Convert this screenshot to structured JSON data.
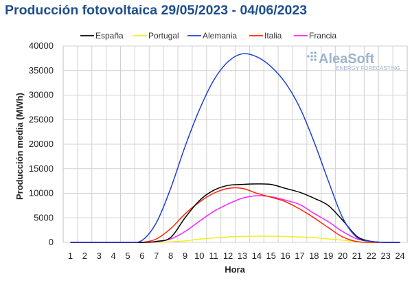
{
  "chart_data": {
    "type": "line",
    "title": "Producción fotovoltaica 29/05/2023 - 04/06/2023",
    "xlabel": "Hora",
    "ylabel": "Producción media (MWh)",
    "ylim": [
      0,
      40000
    ],
    "yticks": [
      0,
      5000,
      10000,
      15000,
      20000,
      25000,
      30000,
      35000,
      40000
    ],
    "grid": true,
    "legend_position": "top",
    "x": [
      1,
      2,
      3,
      4,
      5,
      6,
      7,
      8,
      9,
      10,
      11,
      12,
      13,
      14,
      15,
      16,
      17,
      18,
      19,
      20,
      21,
      22,
      23,
      24
    ],
    "series": [
      {
        "name": "España",
        "color": "#000000",
        "values": [
          0,
          0,
          0,
          0,
          0,
          0,
          200,
          1000,
          5000,
          8500,
          10600,
          11600,
          11800,
          11900,
          11800,
          11000,
          10200,
          9000,
          7500,
          4500,
          1200,
          200,
          0,
          0
        ]
      },
      {
        "name": "Portugal",
        "color": "#f2ee1c",
        "values": [
          0,
          0,
          0,
          0,
          0,
          0,
          0,
          100,
          300,
          650,
          900,
          1100,
          1200,
          1250,
          1250,
          1200,
          1100,
          950,
          700,
          450,
          150,
          0,
          0,
          0
        ]
      },
      {
        "name": "Alemania",
        "color": "#1f3fd6",
        "values": [
          0,
          0,
          0,
          0,
          0,
          400,
          4000,
          11000,
          19500,
          27000,
          33000,
          36800,
          38400,
          37800,
          35800,
          32500,
          27500,
          20500,
          12500,
          5000,
          1000,
          200,
          0,
          0
        ]
      },
      {
        "name": "Italia",
        "color": "#ff2200",
        "values": [
          0,
          0,
          0,
          0,
          0,
          0,
          700,
          2800,
          5800,
          8200,
          10000,
          11000,
          11000,
          10000,
          9200,
          8300,
          6800,
          5000,
          3000,
          1100,
          150,
          0,
          0,
          0
        ]
      },
      {
        "name": "Francia",
        "color": "#ff22ff",
        "values": [
          0,
          0,
          0,
          0,
          0,
          0,
          100,
          700,
          2200,
          4300,
          6300,
          7800,
          9000,
          9500,
          9300,
          8600,
          7700,
          5900,
          4200,
          2200,
          700,
          200,
          0,
          0
        ]
      }
    ]
  },
  "logo": {
    "main": "AleaSoft",
    "sub": "ENERGY FORECASTING"
  }
}
